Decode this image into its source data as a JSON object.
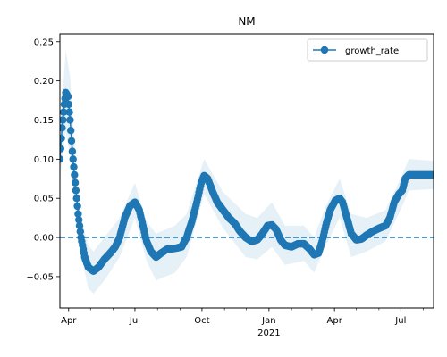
{
  "chart_data": {
    "type": "line",
    "title": "NM",
    "xlabel": "",
    "ylabel": "",
    "colors": {
      "series": "#1f77b4",
      "band": "#1f77b4"
    },
    "marker": "circle",
    "legend": {
      "location": "upper-right",
      "entries": [
        "growth_rate"
      ]
    },
    "reference_line": {
      "y": 0.0,
      "style": "dashed"
    },
    "x_range": [
      "2020-03-20",
      "2021-08-15"
    ],
    "ylim": [
      -0.09,
      0.26
    ],
    "x_ticks": [
      {
        "date": "2020-04-01",
        "label": "Apr",
        "sublabel": ""
      },
      {
        "date": "2020-07-01",
        "label": "Jul",
        "sublabel": ""
      },
      {
        "date": "2020-10-01",
        "label": "Oct",
        "sublabel": ""
      },
      {
        "date": "2021-01-01",
        "label": "Jan",
        "sublabel": "2021"
      },
      {
        "date": "2021-04-01",
        "label": "Apr",
        "sublabel": ""
      },
      {
        "date": "2021-07-01",
        "label": "Jul",
        "sublabel": ""
      }
    ],
    "y_ticks": [
      {
        "value": -0.05,
        "label": "−0.05"
      },
      {
        "value": 0.0,
        "label": "0.00"
      },
      {
        "value": 0.05,
        "label": "0.05"
      },
      {
        "value": 0.1,
        "label": "0.10"
      },
      {
        "value": 0.15,
        "label": "0.15"
      },
      {
        "value": 0.2,
        "label": "0.20"
      },
      {
        "value": 0.25,
        "label": "0.25"
      }
    ],
    "series": [
      {
        "name": "growth_rate",
        "points": [
          [
            "2020-03-20",
            0.1
          ],
          [
            "2020-03-23",
            0.14
          ],
          [
            "2020-03-26",
            0.17
          ],
          [
            "2020-03-28",
            0.185
          ],
          [
            "2020-03-31",
            0.18
          ],
          [
            "2020-04-03",
            0.15
          ],
          [
            "2020-04-06",
            0.11
          ],
          [
            "2020-04-10",
            0.07
          ],
          [
            "2020-04-14",
            0.03
          ],
          [
            "2020-04-18",
            0.0
          ],
          [
            "2020-04-23",
            -0.025
          ],
          [
            "2020-04-28",
            -0.038
          ],
          [
            "2020-05-05",
            -0.043
          ],
          [
            "2020-05-12",
            -0.038
          ],
          [
            "2020-05-20",
            -0.028
          ],
          [
            "2020-05-28",
            -0.02
          ],
          [
            "2020-06-04",
            -0.012
          ],
          [
            "2020-06-10",
            0.0
          ],
          [
            "2020-06-17",
            0.025
          ],
          [
            "2020-06-24",
            0.04
          ],
          [
            "2020-07-01",
            0.045
          ],
          [
            "2020-07-07",
            0.035
          ],
          [
            "2020-07-12",
            0.015
          ],
          [
            "2020-07-17",
            -0.005
          ],
          [
            "2020-07-23",
            -0.018
          ],
          [
            "2020-07-30",
            -0.025
          ],
          [
            "2020-08-06",
            -0.02
          ],
          [
            "2020-08-14",
            -0.015
          ],
          [
            "2020-08-25",
            -0.014
          ],
          [
            "2020-09-03",
            -0.012
          ],
          [
            "2020-09-10",
            0.0
          ],
          [
            "2020-09-17",
            0.02
          ],
          [
            "2020-09-24",
            0.045
          ],
          [
            "2020-09-30",
            0.07
          ],
          [
            "2020-10-04",
            0.079
          ],
          [
            "2020-10-09",
            0.075
          ],
          [
            "2020-10-15",
            0.06
          ],
          [
            "2020-10-22",
            0.045
          ],
          [
            "2020-10-30",
            0.035
          ],
          [
            "2020-11-07",
            0.025
          ],
          [
            "2020-11-15",
            0.018
          ],
          [
            "2020-11-22",
            0.008
          ],
          [
            "2020-11-30",
            0.0
          ],
          [
            "2020-12-08",
            -0.005
          ],
          [
            "2020-12-16",
            -0.003
          ],
          [
            "2020-12-23",
            0.005
          ],
          [
            "2020-12-30",
            0.015
          ],
          [
            "2021-01-05",
            0.016
          ],
          [
            "2021-01-11",
            0.01
          ],
          [
            "2021-01-17",
            -0.003
          ],
          [
            "2021-01-23",
            -0.01
          ],
          [
            "2021-02-01",
            -0.012
          ],
          [
            "2021-02-10",
            -0.008
          ],
          [
            "2021-02-18",
            -0.008
          ],
          [
            "2021-02-26",
            -0.015
          ],
          [
            "2021-03-04",
            -0.022
          ],
          [
            "2021-03-10",
            -0.02
          ],
          [
            "2021-03-15",
            -0.005
          ],
          [
            "2021-03-20",
            0.015
          ],
          [
            "2021-03-26",
            0.035
          ],
          [
            "2021-04-02",
            0.047
          ],
          [
            "2021-04-08",
            0.05
          ],
          [
            "2021-04-12",
            0.045
          ],
          [
            "2021-04-18",
            0.025
          ],
          [
            "2021-04-24",
            0.005
          ],
          [
            "2021-05-01",
            -0.003
          ],
          [
            "2021-05-08",
            -0.002
          ],
          [
            "2021-05-15",
            0.003
          ],
          [
            "2021-05-24",
            0.008
          ],
          [
            "2021-06-02",
            0.012
          ],
          [
            "2021-06-10",
            0.015
          ],
          [
            "2021-06-16",
            0.025
          ],
          [
            "2021-06-22",
            0.045
          ],
          [
            "2021-06-28",
            0.055
          ],
          [
            "2021-07-03",
            0.06
          ],
          [
            "2021-07-07",
            0.075
          ],
          [
            "2021-07-12",
            0.08
          ],
          [
            "2021-07-25",
            0.08
          ],
          [
            "2021-08-15",
            0.08
          ]
        ],
        "band": [
          [
            "2020-03-20",
            0.075,
            0.125
          ],
          [
            "2020-03-28",
            0.135,
            0.24
          ],
          [
            "2020-04-03",
            0.105,
            0.205
          ],
          [
            "2020-04-10",
            0.04,
            0.105
          ],
          [
            "2020-04-18",
            -0.022,
            0.025
          ],
          [
            "2020-04-28",
            -0.065,
            -0.01
          ],
          [
            "2020-05-05",
            -0.072,
            -0.018
          ],
          [
            "2020-05-20",
            -0.055,
            0.0
          ],
          [
            "2020-06-10",
            -0.025,
            0.025
          ],
          [
            "2020-07-01",
            0.025,
            0.07
          ],
          [
            "2020-07-17",
            -0.03,
            0.02
          ],
          [
            "2020-07-30",
            -0.055,
            0.005
          ],
          [
            "2020-08-25",
            -0.045,
            0.015
          ],
          [
            "2020-09-10",
            -0.025,
            0.03
          ],
          [
            "2020-10-04",
            0.055,
            0.1
          ],
          [
            "2020-10-30",
            0.012,
            0.058
          ],
          [
            "2020-11-30",
            -0.025,
            0.03
          ],
          [
            "2020-12-16",
            -0.028,
            0.025
          ],
          [
            "2021-01-05",
            -0.012,
            0.045
          ],
          [
            "2021-01-23",
            -0.035,
            0.015
          ],
          [
            "2021-02-18",
            -0.03,
            0.015
          ],
          [
            "2021-03-04",
            -0.045,
            0.0
          ],
          [
            "2021-03-20",
            -0.01,
            0.04
          ],
          [
            "2021-04-08",
            0.025,
            0.075
          ],
          [
            "2021-04-24",
            -0.025,
            0.03
          ],
          [
            "2021-05-15",
            -0.018,
            0.025
          ],
          [
            "2021-06-10",
            -0.005,
            0.035
          ],
          [
            "2021-07-03",
            0.04,
            0.08
          ],
          [
            "2021-07-12",
            0.06,
            0.1
          ],
          [
            "2021-08-15",
            0.062,
            0.098
          ]
        ]
      }
    ]
  }
}
